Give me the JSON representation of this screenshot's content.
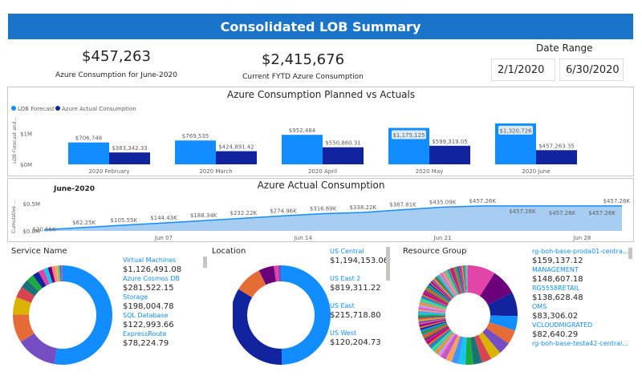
{
  "header": {
    "title": "Consolidated LOB Summary"
  },
  "kpis": {
    "june": {
      "value": "$457,263",
      "label": "Azure Consumption for June-2020"
    },
    "fytd": {
      "value": "$2,415,676",
      "label": "Current FYTD Azure Consumption"
    }
  },
  "date_range": {
    "title": "Date Range",
    "start": "2/1/2020",
    "end": "6/30/2020"
  },
  "colors": {
    "forecast": "#118dff",
    "actual": "#12239e",
    "title_bar": "#1a74c9",
    "area": "#a7cdf3",
    "line": "#118dff"
  },
  "chart_data": [
    {
      "type": "bar",
      "title": "Azure Consumption Planned vs Actuals",
      "ylabel": "LOB Forecast and...",
      "yticks": [
        "$1M",
        "$0M"
      ],
      "ylim": [
        0,
        1500000
      ],
      "categories": [
        "2020 February",
        "2020 March",
        "2020 April",
        "2020 May",
        "2020 June"
      ],
      "series": [
        {
          "name": "LOB Forecast",
          "values": [
            706748,
            769535,
            952484,
            1175125,
            1320726
          ],
          "labels": [
            "$706,748",
            "$769,535",
            "$952,484",
            "$1,175,125",
            "$1,320,726"
          ]
        },
        {
          "name": "Azure Actual Consumption",
          "values": [
            383342.33,
            424891.42,
            550860.31,
            599319.05,
            457263.35
          ],
          "labels": [
            "$383,342.33",
            "$424,891.42",
            "$550,860.31",
            "$599,319.05",
            "$457,263.35"
          ]
        }
      ]
    },
    {
      "type": "area",
      "title": "Azure Actual Consumption",
      "subtitle": "June-2020",
      "ylabel": "Cumulative ...",
      "yticks": [
        "$0.5M",
        "$0.0M"
      ],
      "ylim": [
        0,
        500000
      ],
      "xticks": [
        "Jun 07",
        "Jun 14",
        "Jun 21",
        "Jun 28"
      ],
      "x": [
        1,
        3,
        5,
        7,
        9,
        11,
        13,
        15,
        17,
        19,
        21,
        23,
        25,
        27,
        29,
        30
      ],
      "values": [
        20560,
        62250,
        105550,
        144430,
        188340,
        232220,
        274960,
        316690,
        338220,
        387810,
        435090,
        457260,
        457260,
        457260,
        457260,
        457260
      ],
      "labels": [
        "$20.56K",
        "$62.25K",
        "$105.55K",
        "$144.43K",
        "$188.34K",
        "$232.22K",
        "$274.96K",
        "$316.69K",
        "$338.22K",
        "$387.81K",
        "$435.09K",
        "$457.26K",
        "$457.26K",
        "$457.26K",
        "$457.26K",
        "$457.26K"
      ]
    }
  ],
  "service": {
    "title": "Service Name",
    "items": [
      {
        "name": "Virtual Machines",
        "value": "$1,126,491.08"
      },
      {
        "name": "Azure Cosmos DB",
        "value": "$281,522.15"
      },
      {
        "name": "Storage",
        "value": "$198,004.78"
      },
      {
        "name": "SQL Database",
        "value": "$122,993.66"
      },
      {
        "name": "ExpressRoute",
        "value": "$78,224.79"
      }
    ]
  },
  "location": {
    "title": "Location",
    "items": [
      {
        "name": "US Central",
        "value": "$1,194,153.06"
      },
      {
        "name": "US East 2",
        "value": "$819,311.22"
      },
      {
        "name": "US East",
        "value": "$215,718.80"
      },
      {
        "name": "US West",
        "value": "$120,204.73"
      }
    ]
  },
  "resource_group": {
    "title": "Resource Group",
    "items": [
      {
        "name": "rg-boh-base-proda01-centra...",
        "value": "$159,137.12"
      },
      {
        "name": "MANAGEMENT",
        "value": "$148,607.18"
      },
      {
        "name": "RG5558RETAIL",
        "value": "$138,628.48"
      },
      {
        "name": "OMS",
        "value": "$83,306.02"
      },
      {
        "name": "VCLOUDMIGRATED",
        "value": "$82,640.29"
      },
      {
        "name": "rg-boh-base-testa42-central...",
        "value": ""
      }
    ]
  }
}
